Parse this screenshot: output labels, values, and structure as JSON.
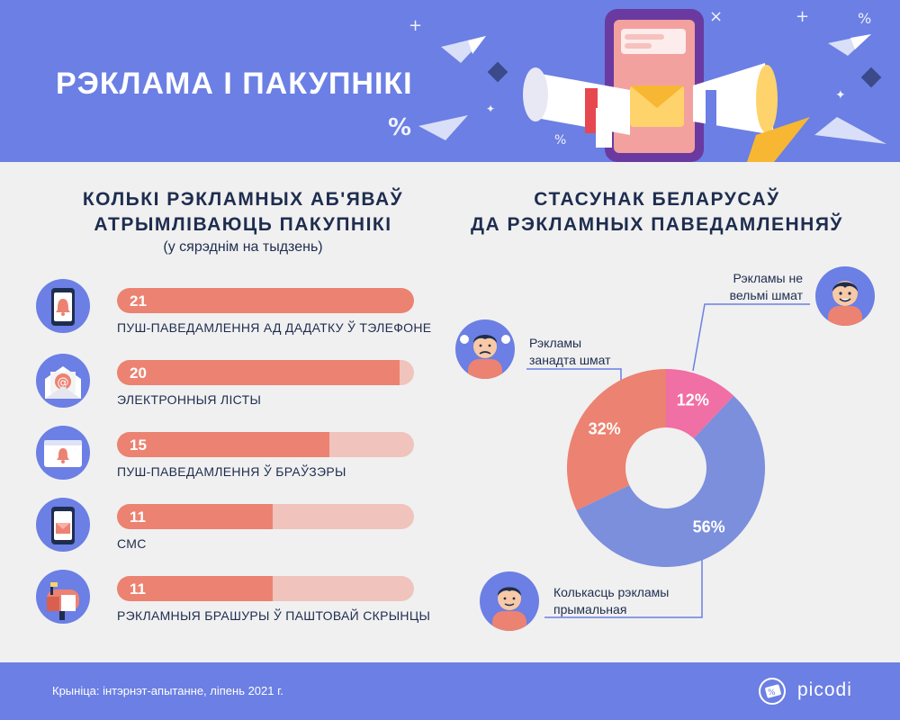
{
  "header": {
    "title": "РЭКЛАМА І ПАКУПНІКІ"
  },
  "left": {
    "title_line1": "КОЛЬКІ РЭКЛАМНЫХ АБ'ЯВАЎ",
    "title_line2": "АТРЫМЛІВАЮЦЬ ПАКУПНІКІ",
    "subtitle": "(у сярэднім на тыдзень)"
  },
  "right": {
    "title_line1": "СТАСУНАК БЕЛАРУСАЎ",
    "title_line2": "ДА РЭКЛАМНЫХ ПАВЕДАМЛЕННЯЎ"
  },
  "colors": {
    "accent": "#6b7fe4",
    "bar": "#ec8271",
    "bar_track": "#f0c4bc",
    "pink": "#f06fa4",
    "title": "#1e2d4f"
  },
  "chart_data": [
    {
      "type": "bar",
      "orientation": "horizontal",
      "categories": [
        "ПУШ-ПАВЕДАМЛЕННЯ АД ДАДАТКУ Ў ТЭЛЕФОНЕ",
        "ЭЛЕКТРОННЫЯ ЛІСТЫ",
        "ПУШ-ПАВЕДАМЛЕННЯ Ў БРАЎЗЭРЫ",
        "СМС",
        "РЭКЛАМНЫЯ БРАШУРЫ Ў ПАШТОВАЙ СКРЫНЦЫ"
      ],
      "values": [
        21,
        20,
        15,
        11,
        11
      ],
      "icons": [
        "phone-bell-icon",
        "email-at-icon",
        "browser-bell-icon",
        "phone-envelope-icon",
        "mailbox-icon"
      ],
      "xlim": [
        0,
        21
      ]
    },
    {
      "type": "pie",
      "variant": "donut",
      "categories": [
        "Рэкламы не вельмі шмат",
        "Колькасць рэкламы прымальная",
        "Рэкламы занадта шмат"
      ],
      "values": [
        12,
        56,
        32
      ],
      "value_labels": [
        "12%",
        "56%",
        "32%"
      ],
      "colors": [
        "#f06fa4",
        "#7b8fdc",
        "#ec8271"
      ]
    }
  ],
  "footer": {
    "source": "Крыніца: інтэрнэт-апытанне, ліпень 2021 г.",
    "logo": "picodi"
  }
}
